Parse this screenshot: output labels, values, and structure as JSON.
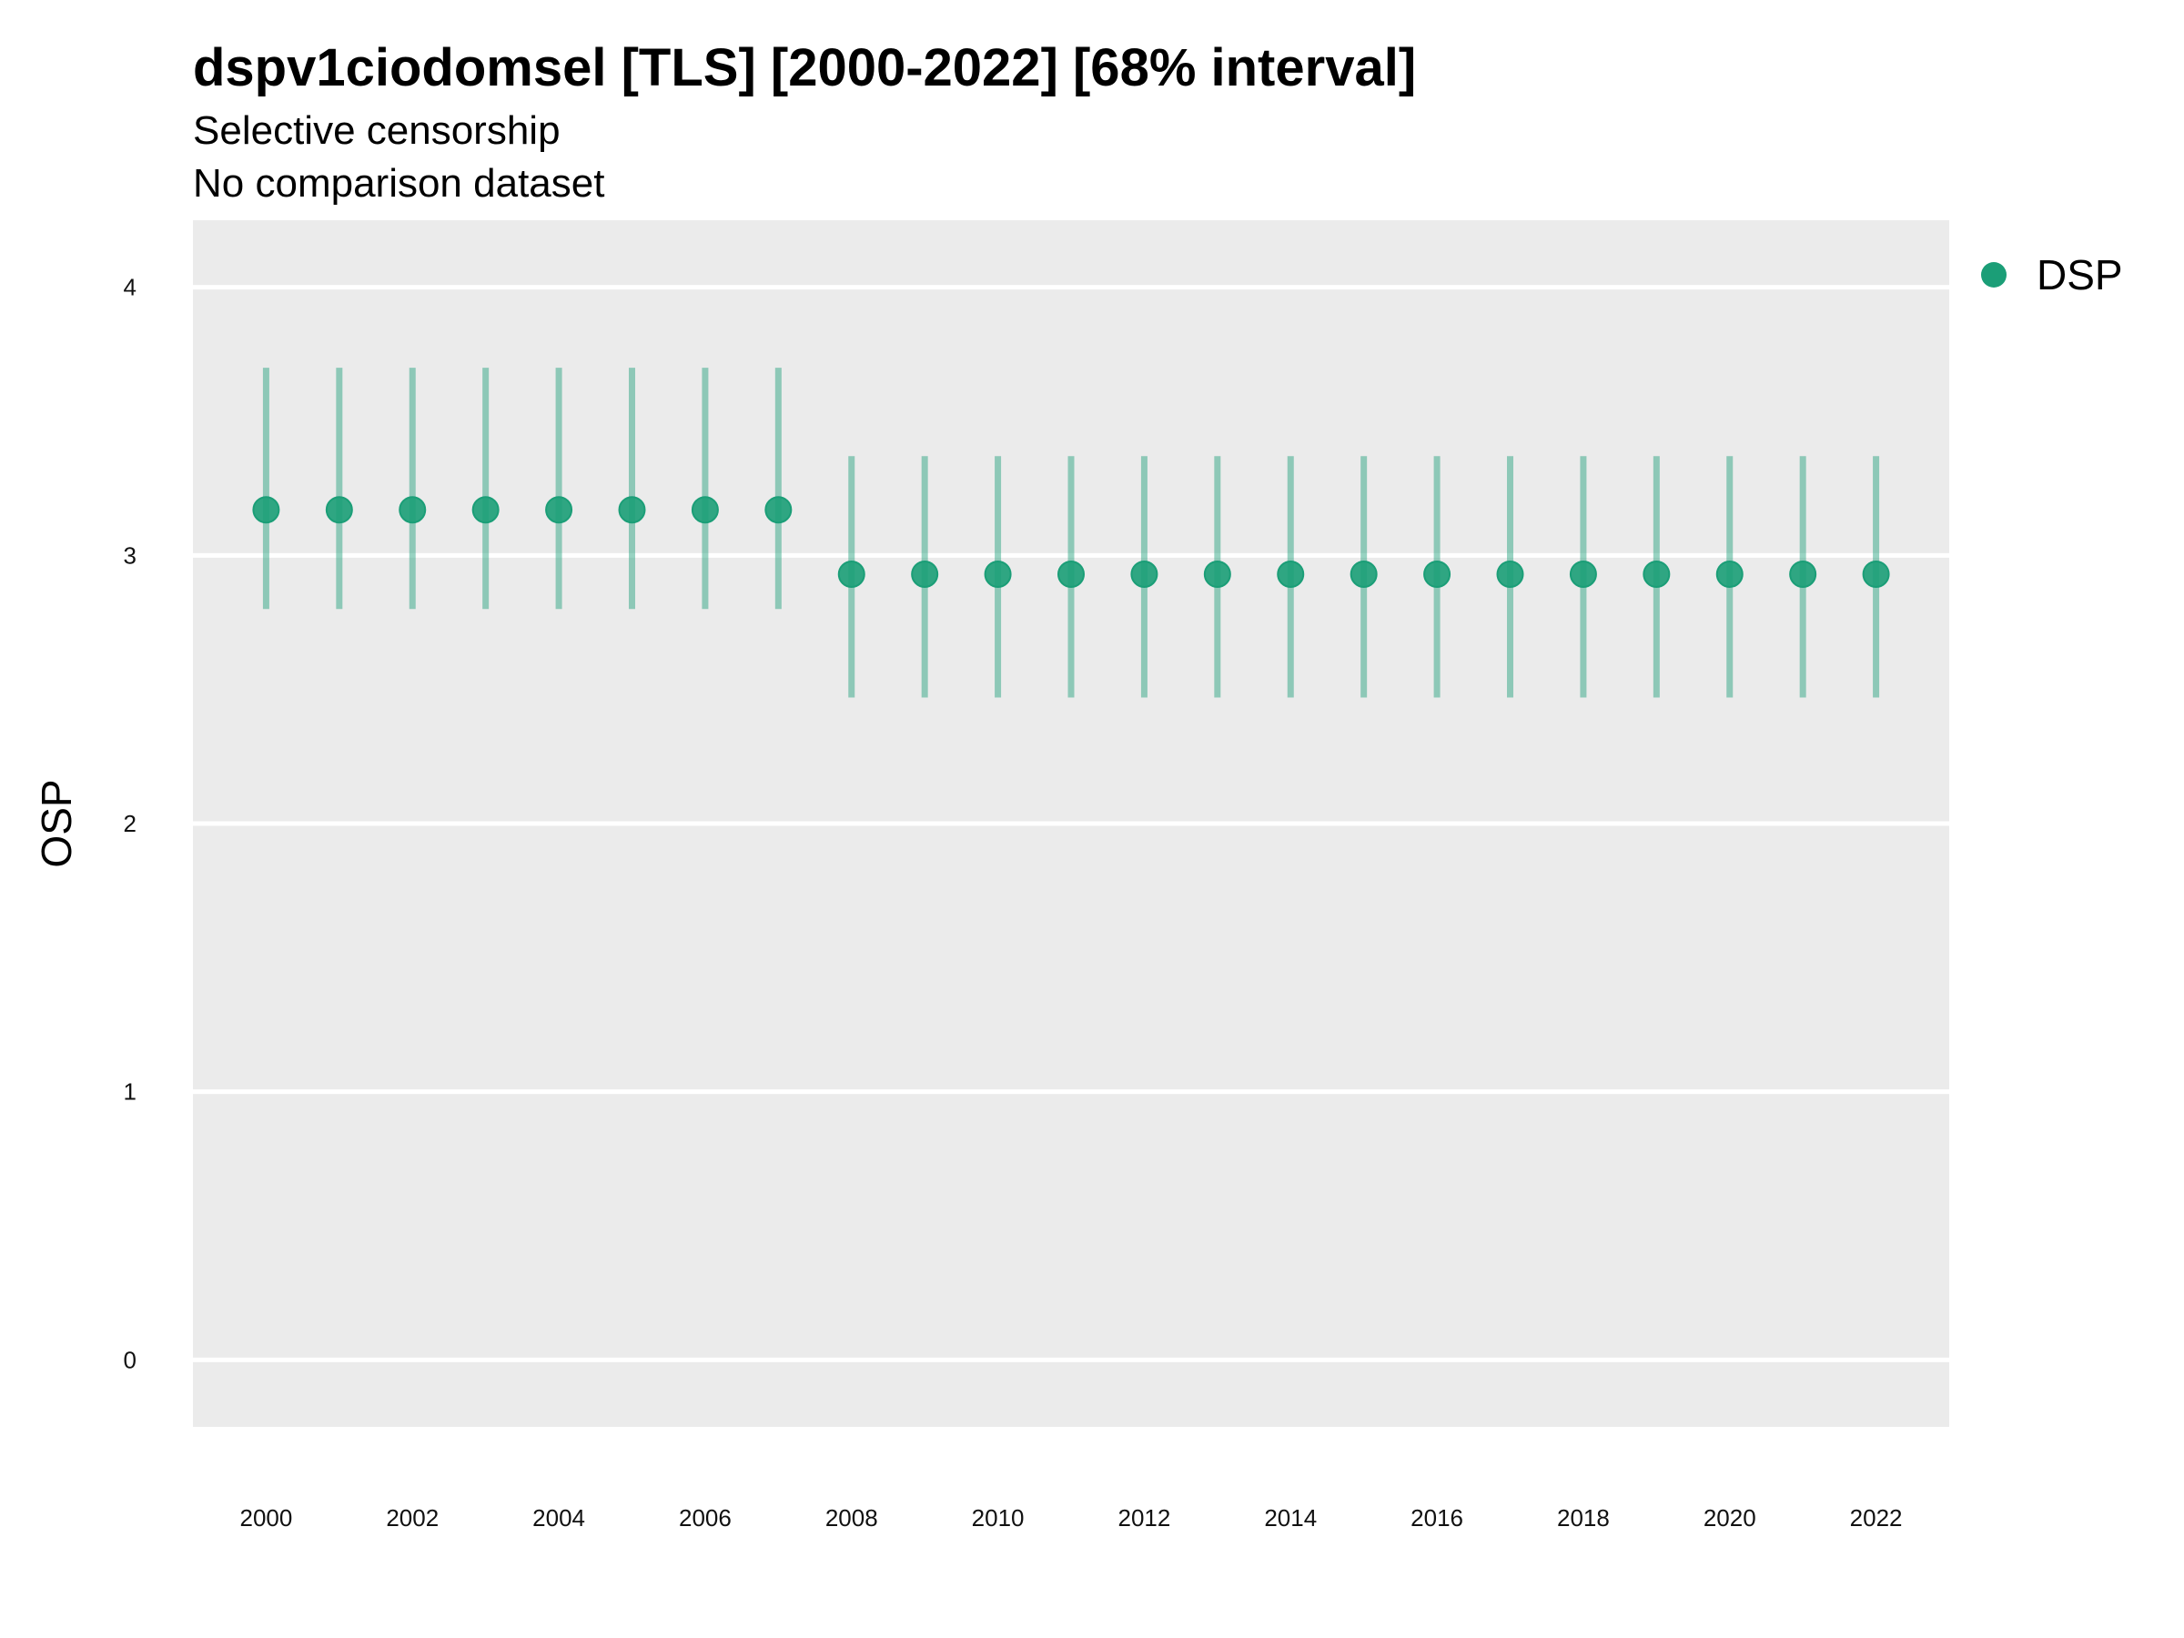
{
  "title": "dspv1ciodomsel [TLS] [2000-2022] [68% interval]",
  "subtitle_lines": [
    "Selective censorship",
    "No comparison dataset"
  ],
  "colors": {
    "series": "#1b9e77",
    "panel": "#ebebeb",
    "grid": "#ffffff"
  },
  "chart_data": {
    "type": "scatter",
    "title": "dspv1ciodomsel [TLS] [2000-2022] [68% interval]",
    "subtitle": "Selective censorship / No comparison dataset",
    "xlabel": "",
    "ylabel": "OSP",
    "ylim": [
      -0.25,
      4.25
    ],
    "xlim": [
      1999,
      2023
    ],
    "grid": true,
    "legend_position": "right",
    "x_ticks": [
      "2000",
      "2002",
      "2004",
      "2006",
      "2008",
      "2010",
      "2012",
      "2014",
      "2016",
      "2018",
      "2020",
      "2022"
    ],
    "y_ticks": [
      "0",
      "1",
      "2",
      "3",
      "4"
    ],
    "series": [
      {
        "name": "DSP",
        "x": [
          2000,
          2001,
          2002,
          2003,
          2004,
          2005,
          2006,
          2007,
          2008,
          2009,
          2010,
          2011,
          2012,
          2013,
          2014,
          2015,
          2016,
          2017,
          2018,
          2019,
          2020,
          2021,
          2022
        ],
        "y": [
          3.17,
          3.17,
          3.17,
          3.17,
          3.17,
          3.17,
          3.17,
          3.17,
          2.93,
          2.93,
          2.93,
          2.93,
          2.93,
          2.93,
          2.93,
          2.93,
          2.93,
          2.93,
          2.93,
          2.93,
          2.93,
          2.93,
          2.93
        ],
        "lower": [
          2.8,
          2.8,
          2.8,
          2.8,
          2.8,
          2.8,
          2.8,
          2.8,
          2.47,
          2.47,
          2.47,
          2.47,
          2.47,
          2.47,
          2.47,
          2.47,
          2.47,
          2.47,
          2.47,
          2.47,
          2.47,
          2.47,
          2.47
        ],
        "upper": [
          3.7,
          3.7,
          3.7,
          3.7,
          3.7,
          3.7,
          3.7,
          3.7,
          3.37,
          3.37,
          3.37,
          3.37,
          3.37,
          3.37,
          3.37,
          3.37,
          3.37,
          3.37,
          3.37,
          3.37,
          3.37,
          3.37,
          3.37
        ]
      }
    ]
  }
}
